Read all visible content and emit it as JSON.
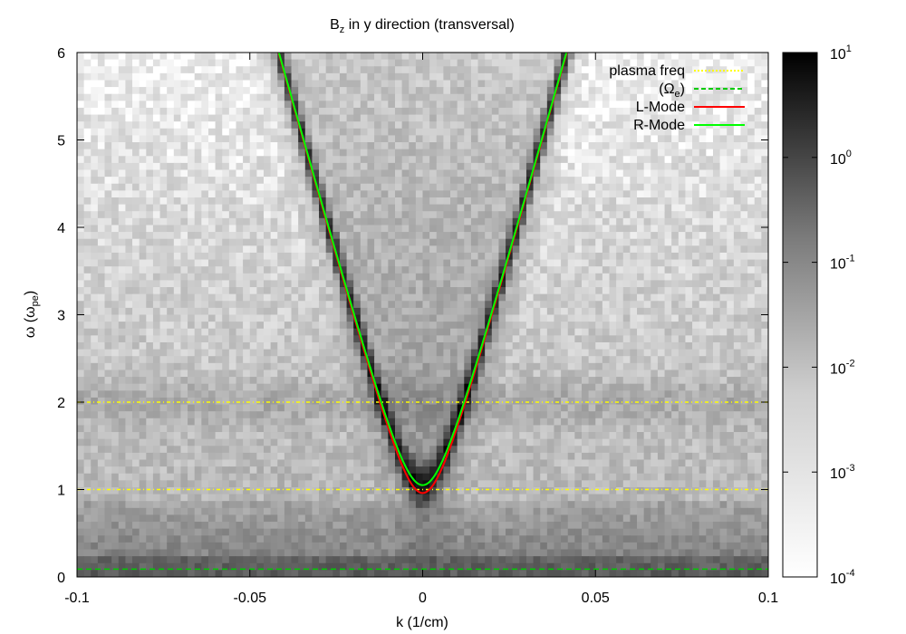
{
  "chart_data": {
    "type": "heatmap",
    "title": {
      "main": "B",
      "sub": "z",
      "rest": " in y direction (transversal)"
    },
    "xlabel": "k (1/cm)",
    "ylabel": {
      "main": "ω (ω",
      "sub": "pe",
      "close": ")"
    },
    "xlim": [
      -0.1,
      0.1
    ],
    "ylim": [
      0,
      6
    ],
    "xticks": [
      "-0.1",
      "-0.05",
      "0",
      "0.05",
      "0.1"
    ],
    "yticks": [
      "0",
      "1",
      "2",
      "3",
      "4",
      "5",
      "6"
    ],
    "colorbar": {
      "scale": "log",
      "range": [
        0.0001,
        10
      ],
      "ticks": [
        {
          "base": "10",
          "exp": "-4",
          "value": 0.0001
        },
        {
          "base": "10",
          "exp": "-3",
          "value": 0.001
        },
        {
          "base": "10",
          "exp": "-2",
          "value": 0.01
        },
        {
          "base": "10",
          "exp": "-1",
          "value": 0.1
        },
        {
          "base": "10",
          "exp": "0",
          "value": 1
        },
        {
          "base": "10",
          "exp": "1",
          "value": 10
        }
      ],
      "colormap": "gray-reversed"
    },
    "legend": {
      "position": "top-right",
      "entries": [
        {
          "label": "plasma freq",
          "color": "#ffff00",
          "style": "dotted"
        },
        {
          "label": "(Ω",
          "sub": "e",
          "close": ")",
          "color": "#00cc00",
          "style": "dashed"
        },
        {
          "label": "L-Mode",
          "color": "#ff0000",
          "style": "solid"
        },
        {
          "label": "R-Mode",
          "color": "#00ff00",
          "style": "solid"
        }
      ]
    },
    "series": [
      {
        "name": "plasma freq",
        "kind": "hline",
        "y": [
          1,
          2
        ]
      },
      {
        "name": "(Ωe)",
        "kind": "hline",
        "y": [
          0.09
        ]
      },
      {
        "name": "L-Mode",
        "kind": "dispersion",
        "omega_at_k0": 0.96,
        "asymptotic_slope": 142
      },
      {
        "name": "R-Mode",
        "kind": "dispersion",
        "omega_at_k0": 1.05,
        "asymptotic_slope": 142
      }
    ]
  }
}
